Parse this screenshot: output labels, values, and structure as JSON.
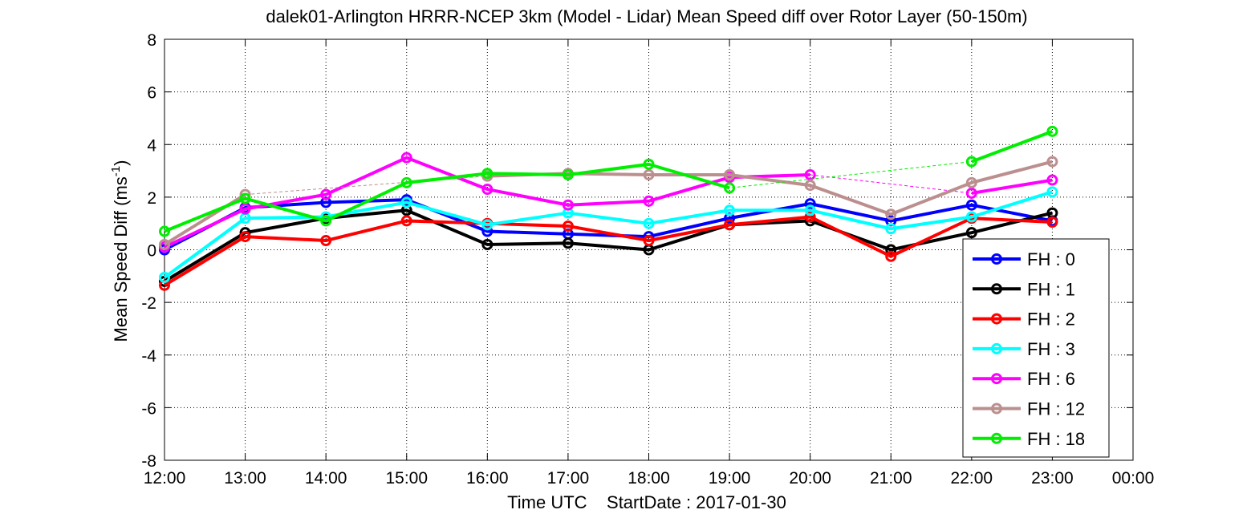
{
  "chart_data": {
    "type": "line",
    "title": "dalek01-Arlington HRRR-NCEP 3km (Model - Lidar) Mean Speed diff over Rotor Layer (50-150m)",
    "xlabel": "Time UTC    StartDate : 2017-01-30",
    "ylabel": "Mean Speed Diff (ms",
    "ylabel_sup": "-1",
    "ylabel_close": ")",
    "ylim": [
      -8,
      8
    ],
    "xlim_hours": [
      12,
      24
    ],
    "grid": true,
    "legend_position": "bottom-right",
    "x_ticks": [
      "12:00",
      "13:00",
      "14:00",
      "15:00",
      "16:00",
      "17:00",
      "18:00",
      "19:00",
      "20:00",
      "21:00",
      "22:00",
      "23:00",
      "00:00"
    ],
    "y_ticks": [
      -8,
      -6,
      -4,
      -2,
      0,
      2,
      4,
      6,
      8
    ],
    "series": [
      {
        "name": "FH : 0",
        "color": "#0000ff",
        "legend": "FH : 0",
        "x": [
          "12:00",
          "13:00",
          "14:00",
          "15:00",
          "16:00",
          "17:00",
          "18:00",
          "19:00",
          "20:00",
          "21:00",
          "22:00",
          "23:00"
        ],
        "y": [
          0.0,
          1.6,
          1.8,
          1.9,
          0.7,
          0.6,
          0.5,
          1.2,
          1.75,
          1.1,
          1.7,
          1.1
        ]
      },
      {
        "name": "FH : 1",
        "color": "#000000",
        "legend": "FH : 1",
        "x": [
          "12:00",
          "13:00",
          "14:00",
          "15:00",
          "16:00",
          "17:00",
          "18:00",
          "19:00",
          "20:00",
          "21:00",
          "22:00",
          "23:00"
        ],
        "y": [
          -1.2,
          0.65,
          1.2,
          1.5,
          0.2,
          0.25,
          0.0,
          0.95,
          1.1,
          0.0,
          0.65,
          1.4
        ]
      },
      {
        "name": "FH : 2",
        "color": "#ff0000",
        "legend": "FH : 2",
        "x": [
          "12:00",
          "13:00",
          "14:00",
          "15:00",
          "16:00",
          "17:00",
          "18:00",
          "19:00",
          "20:00",
          "21:00",
          "22:00",
          "23:00"
        ],
        "y": [
          -1.35,
          0.5,
          0.35,
          1.1,
          1.0,
          0.9,
          0.35,
          0.95,
          1.25,
          -0.25,
          1.2,
          1.05
        ]
      },
      {
        "name": "FH : 3",
        "color": "#00ffff",
        "legend": "FH : 3",
        "x": [
          "12:00",
          "13:00",
          "14:00",
          "15:00",
          "16:00",
          "17:00",
          "18:00",
          "19:00",
          "20:00",
          "21:00",
          "22:00",
          "23:00"
        ],
        "y": [
          -1.05,
          1.2,
          1.25,
          1.8,
          0.95,
          1.4,
          1.0,
          1.5,
          1.5,
          0.8,
          1.25,
          2.2
        ]
      },
      {
        "name": "FH : 6",
        "color": "#ff00ff",
        "legend": "FH : 6",
        "x": [
          "12:00",
          "13:00",
          "14:00",
          "15:00",
          "16:00",
          "17:00",
          "18:00",
          "19:00",
          "20:00",
          "21:00",
          "22:00",
          "23:00"
        ],
        "y": [
          0.1,
          1.55,
          2.1,
          3.5,
          2.3,
          1.7,
          1.85,
          2.75,
          2.85,
          null,
          2.15,
          2.65
        ]
      },
      {
        "name": "FH : 12",
        "color": "#bc8f8f",
        "legend": "FH : 12",
        "x": [
          "12:00",
          "13:00",
          "14:00",
          "15:00",
          "16:00",
          "17:00",
          "18:00",
          "19:00",
          "20:00",
          "21:00",
          "22:00",
          "23:00"
        ],
        "y": [
          0.2,
          2.1,
          null,
          null,
          2.8,
          2.9,
          2.85,
          2.85,
          2.45,
          1.35,
          2.55,
          3.35
        ]
      },
      {
        "name": "FH : 18",
        "color": "#00ee00",
        "legend": "FH : 18",
        "x": [
          "12:00",
          "13:00",
          "14:00",
          "15:00",
          "16:00",
          "17:00",
          "18:00",
          "19:00",
          "20:00",
          "21:00",
          "22:00",
          "23:00"
        ],
        "y": [
          0.7,
          1.95,
          1.1,
          2.55,
          2.9,
          2.85,
          3.25,
          2.35,
          null,
          null,
          3.35,
          4.5
        ]
      }
    ]
  }
}
